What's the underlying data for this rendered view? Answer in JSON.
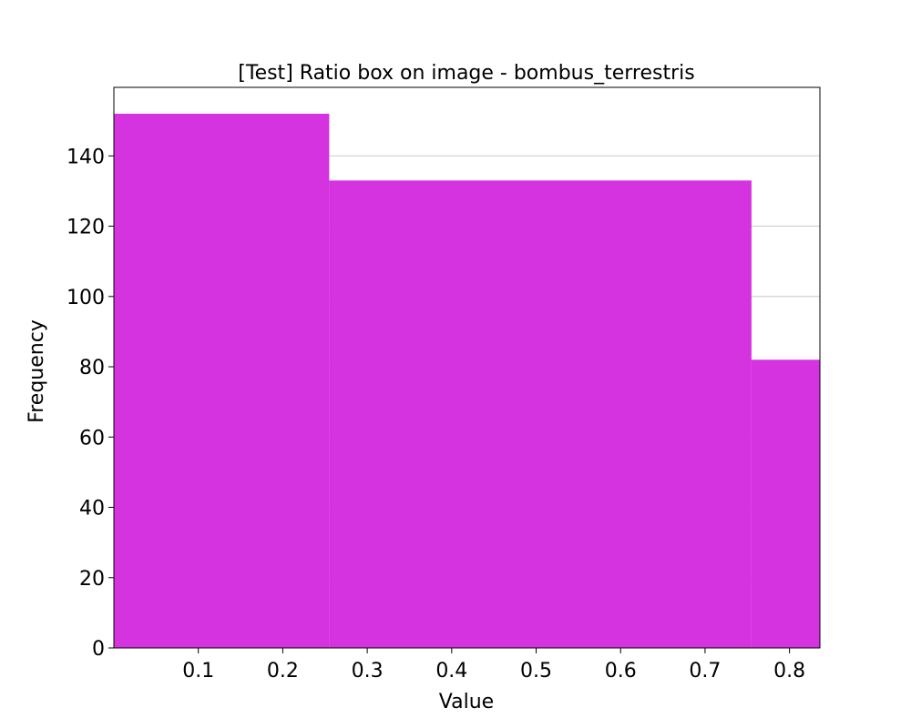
{
  "chart_data": {
    "type": "bar",
    "title": "[Test] Ratio box on image - bombus_terrestris",
    "xlabel": "Value",
    "ylabel": "Frequency",
    "bins": [
      {
        "x0": 0.0,
        "x1": 0.255,
        "count": 152
      },
      {
        "x0": 0.255,
        "x1": 0.755,
        "count": 133
      },
      {
        "x0": 0.755,
        "x1": 0.836,
        "count": 82
      }
    ],
    "xlim": [
      0.0,
      0.836
    ],
    "ylim": [
      0,
      159.5
    ],
    "xticks": [
      0.1,
      0.2,
      0.3,
      0.4,
      0.5,
      0.6,
      0.7,
      0.8
    ],
    "xtick_labels": [
      "0.1",
      "0.2",
      "0.3",
      "0.4",
      "0.5",
      "0.6",
      "0.7",
      "0.8"
    ],
    "yticks": [
      0,
      20,
      40,
      60,
      80,
      100,
      120,
      140
    ],
    "ytick_labels": [
      "0",
      "20",
      "40",
      "60",
      "80",
      "100",
      "120",
      "140"
    ],
    "grid": "y-major",
    "bar_color": "#d633e0",
    "grid_color": "#c8c8c8"
  }
}
